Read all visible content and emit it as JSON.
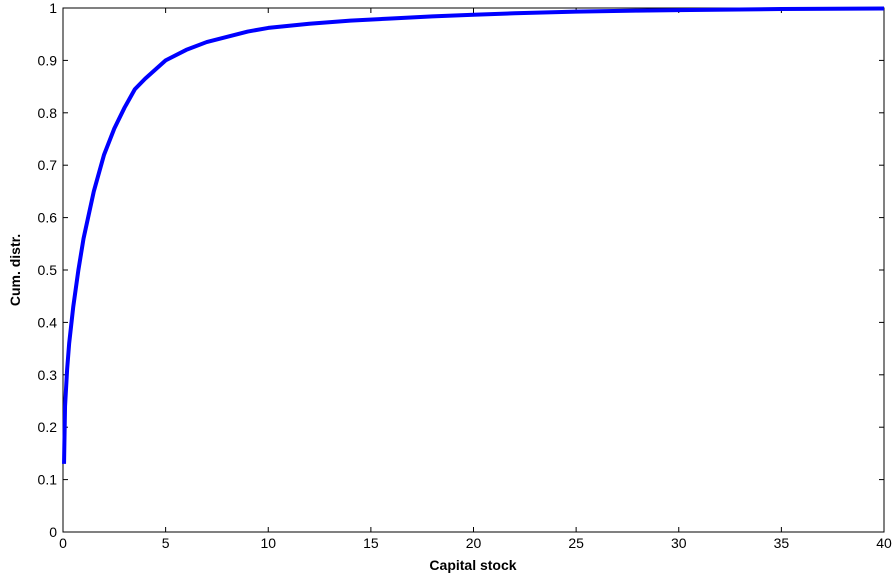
{
  "chart_data": {
    "type": "line",
    "title": "",
    "xlabel": "Capital stock",
    "ylabel": "Cum. distr.",
    "xlim": [
      0,
      40
    ],
    "ylim": [
      0,
      1
    ],
    "x_ticks": [
      "0",
      "5",
      "10",
      "15",
      "20",
      "25",
      "30",
      "35",
      "40"
    ],
    "y_ticks": [
      "0",
      "0.1",
      "0.2",
      "0.3",
      "0.4",
      "0.5",
      "0.6",
      "0.7",
      "0.8",
      "0.9",
      "1"
    ],
    "grid": false,
    "line_color": "#0000ff",
    "series": [
      {
        "x": [
          0.05,
          0.1,
          0.2,
          0.3,
          0.5,
          0.75,
          1,
          1.5,
          2,
          2.5,
          3,
          3.5,
          4,
          5,
          6,
          7,
          8,
          9,
          10,
          12,
          14,
          16,
          18,
          20,
          22,
          25,
          28,
          30,
          35,
          40
        ],
        "y": [
          0.13,
          0.24,
          0.31,
          0.36,
          0.43,
          0.5,
          0.56,
          0.65,
          0.72,
          0.77,
          0.81,
          0.845,
          0.865,
          0.9,
          0.92,
          0.935,
          0.945,
          0.955,
          0.962,
          0.97,
          0.976,
          0.98,
          0.984,
          0.987,
          0.99,
          0.993,
          0.995,
          0.996,
          0.998,
          0.999
        ]
      }
    ]
  }
}
